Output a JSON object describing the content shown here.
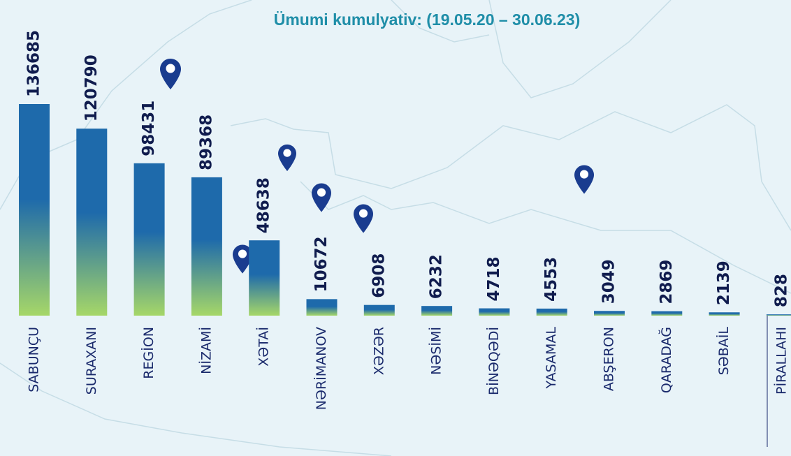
{
  "chart_data": {
    "type": "bar",
    "title": "Ümumi kumulyativ: (19.05.20 – 30.06.23)",
    "categories": [
      "SABUNÇU",
      "SURAXANI",
      "REGİON",
      "NİZAMİ",
      "XƏTAİ",
      "NƏRİMANOV",
      "XƏZƏR",
      "NƏSİMİ",
      "BİNƏQƏDİ",
      "YASAMAL",
      "ABŞERON",
      "QARADAĞ",
      "SƏBAİL",
      "PİRALLAHI"
    ],
    "values": [
      136685,
      120790,
      98431,
      89368,
      48638,
      10672,
      6908,
      6232,
      4718,
      4553,
      3049,
      2869,
      2139,
      828
    ],
    "colors": [
      "#1e6aab",
      "#a6d768"
    ]
  }
}
